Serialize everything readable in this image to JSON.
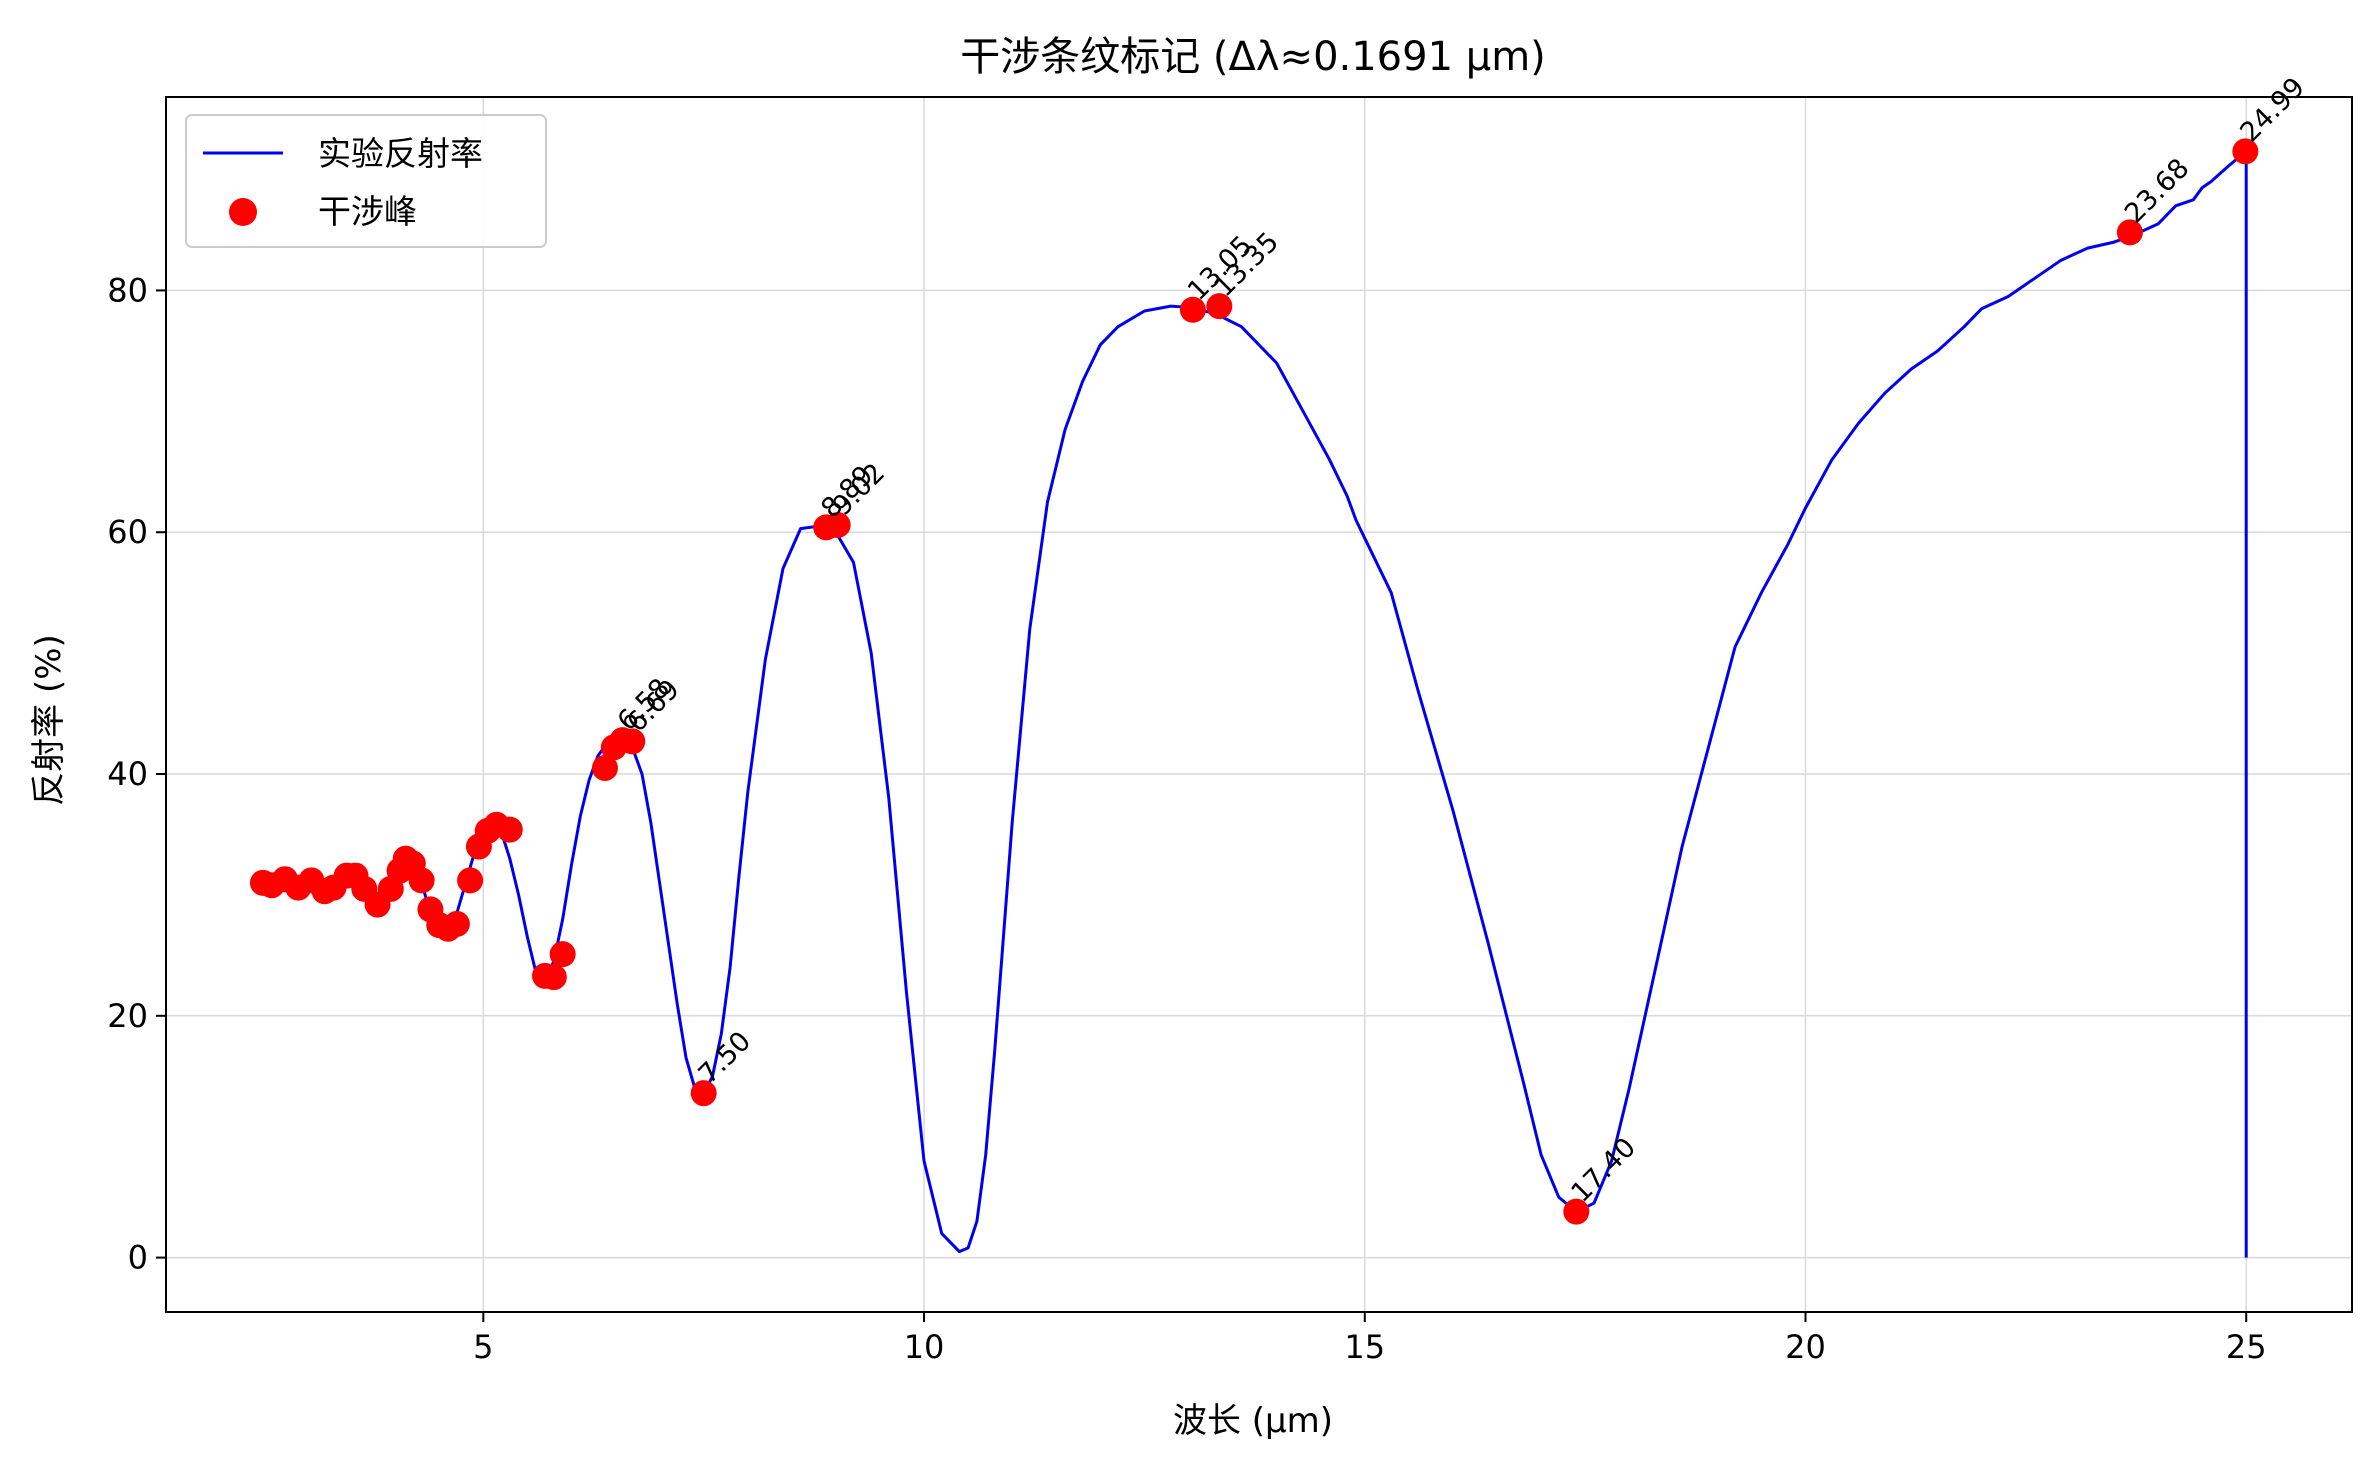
{
  "chart_data": {
    "type": "line",
    "title": "干涉条纹标记 (Δλ≈0.1691 μm)",
    "xlabel": "波长 (μm)",
    "ylabel": "反射率 (%)",
    "xlim": [
      1.4,
      26.2
    ],
    "ylim": [
      -4.5,
      96
    ],
    "xticks": [
      5,
      10,
      15,
      20,
      25
    ],
    "yticks": [
      0,
      20,
      40,
      60,
      80
    ],
    "grid": true,
    "legend": {
      "placement": "top-left",
      "entries": [
        {
          "label": "实验反射率",
          "kind": "line",
          "color": "#0000ee"
        },
        {
          "label": "干涉峰",
          "kind": "marker",
          "color": "#ff0000"
        }
      ]
    },
    "colors": {
      "line": "#0000ee",
      "peaks": "#ff0000",
      "grid": "#d9d9d9"
    },
    "series": [
      {
        "name": "实验反射率",
        "x": [
          2.5,
          2.6,
          2.7,
          2.8,
          2.9,
          3.0,
          3.1,
          3.2,
          3.3,
          3.4,
          3.5,
          3.6,
          3.7,
          3.8,
          3.9,
          4.0,
          4.1,
          4.2,
          4.3,
          4.4,
          4.5,
          4.6,
          4.7,
          4.8,
          4.9,
          5.0,
          5.1,
          5.2,
          5.3,
          5.4,
          5.5,
          5.6,
          5.7,
          5.8,
          5.9,
          6.0,
          6.1,
          6.2,
          6.3,
          6.4,
          6.5,
          6.6,
          6.7,
          6.8,
          6.9,
          7.0,
          7.1,
          7.2,
          7.3,
          7.4,
          7.5,
          7.6,
          7.7,
          7.8,
          7.9,
          8.0,
          8.2,
          8.4,
          8.6,
          8.8,
          9.0,
          9.2,
          9.4,
          9.6,
          9.8,
          10.0,
          10.2,
          10.4,
          10.5,
          10.6,
          10.7,
          10.8,
          11.0,
          11.2,
          11.4,
          11.6,
          11.8,
          12.0,
          12.2,
          12.5,
          12.8,
          13.0,
          13.3,
          13.6,
          14.0,
          14.3,
          14.6,
          14.8,
          14.9,
          15.0,
          15.3,
          15.6,
          16.0,
          16.4,
          16.8,
          17.0,
          17.2,
          17.4,
          17.6,
          17.8,
          18.0,
          18.3,
          18.6,
          19.0,
          19.2,
          19.5,
          19.8,
          20.0,
          20.3,
          20.6,
          20.9,
          21.2,
          21.5,
          21.8,
          22.0,
          22.3,
          22.6,
          22.9,
          23.2,
          23.5,
          23.7,
          24.0,
          24.2,
          24.4,
          24.5,
          24.6,
          24.8,
          24.95,
          25.0,
          25.0
        ],
        "y": [
          30.9,
          30.6,
          31.2,
          31.5,
          30.5,
          30.8,
          31.3,
          30.2,
          30.5,
          31.5,
          31.8,
          30.8,
          29.5,
          29.0,
          30.2,
          31.5,
          33.0,
          32.5,
          31.0,
          28.5,
          27.2,
          27.0,
          28.5,
          31.0,
          33.5,
          35.2,
          35.8,
          35.3,
          33.0,
          30.0,
          26.5,
          23.5,
          23.0,
          24.5,
          28.0,
          32.5,
          36.5,
          39.5,
          41.5,
          42.5,
          42.9,
          42.8,
          42.0,
          40.0,
          36.0,
          31.0,
          26.0,
          21.0,
          16.5,
          14.0,
          13.6,
          15.0,
          18.5,
          24.0,
          31.5,
          38.5,
          49.5,
          57.0,
          60.3,
          60.5,
          60.0,
          57.5,
          50.0,
          38.0,
          22.0,
          8.0,
          2.0,
          0.5,
          0.8,
          3.0,
          8.5,
          17.0,
          36.0,
          52.0,
          62.5,
          68.5,
          72.5,
          75.5,
          77.0,
          78.3,
          78.7,
          78.6,
          78.1,
          77.0,
          74.0,
          70.0,
          66.0,
          63.0,
          61.0,
          59.5,
          55.0,
          47.0,
          37.0,
          26.0,
          14.5,
          8.5,
          5.0,
          3.8,
          4.5,
          8.0,
          14.0,
          24.0,
          34.0,
          45.0,
          50.5,
          55.0,
          59.0,
          62.0,
          66.0,
          69.0,
          71.5,
          73.5,
          75.0,
          77.0,
          78.5,
          79.5,
          81.0,
          82.5,
          83.5,
          84.0,
          84.5,
          85.5,
          87.0,
          87.5,
          88.5,
          89.0,
          90.3,
          91.2,
          90.5,
          0.0
        ]
      },
      {
        "name": "干涉峰",
        "points": [
          {
            "x": 2.5,
            "y": 31.0
          },
          {
            "x": 2.6,
            "y": 30.8
          },
          {
            "x": 2.75,
            "y": 31.3
          },
          {
            "x": 2.9,
            "y": 30.6
          },
          {
            "x": 3.05,
            "y": 31.2
          },
          {
            "x": 3.2,
            "y": 30.3
          },
          {
            "x": 3.3,
            "y": 30.6
          },
          {
            "x": 3.45,
            "y": 31.6
          },
          {
            "x": 3.55,
            "y": 31.6
          },
          {
            "x": 3.65,
            "y": 30.5
          },
          {
            "x": 3.8,
            "y": 29.2
          },
          {
            "x": 3.95,
            "y": 30.5
          },
          {
            "x": 4.05,
            "y": 32.0
          },
          {
            "x": 4.12,
            "y": 33.0
          },
          {
            "x": 4.2,
            "y": 32.6
          },
          {
            "x": 4.3,
            "y": 31.2
          },
          {
            "x": 4.4,
            "y": 28.8
          },
          {
            "x": 4.5,
            "y": 27.5
          },
          {
            "x": 4.6,
            "y": 27.2
          },
          {
            "x": 4.7,
            "y": 27.6
          },
          {
            "x": 4.85,
            "y": 31.2
          },
          {
            "x": 4.95,
            "y": 34.0
          },
          {
            "x": 5.05,
            "y": 35.3
          },
          {
            "x": 5.15,
            "y": 35.8
          },
          {
            "x": 5.3,
            "y": 35.4
          },
          {
            "x": 5.7,
            "y": 23.3
          },
          {
            "x": 5.8,
            "y": 23.2
          },
          {
            "x": 5.9,
            "y": 25.1
          },
          {
            "x": 6.38,
            "y": 40.5
          },
          {
            "x": 6.48,
            "y": 42.2
          },
          {
            "x": 6.58,
            "y": 42.8
          },
          {
            "x": 6.69,
            "y": 42.7
          },
          {
            "x": 7.5,
            "y": 13.6
          },
          {
            "x": 8.89,
            "y": 60.4
          },
          {
            "x": 9.02,
            "y": 60.6
          },
          {
            "x": 13.05,
            "y": 78.4
          },
          {
            "x": 13.35,
            "y": 78.7
          },
          {
            "x": 17.4,
            "y": 3.8
          },
          {
            "x": 23.68,
            "y": 84.8
          },
          {
            "x": 24.99,
            "y": 91.5
          }
        ],
        "annotations": [
          {
            "x": 6.58,
            "y": 42.8,
            "text": "6.58"
          },
          {
            "x": 6.69,
            "y": 42.7,
            "text": "6.69"
          },
          {
            "x": 7.5,
            "y": 13.6,
            "text": "7.50"
          },
          {
            "x": 8.89,
            "y": 60.4,
            "text": "8.89"
          },
          {
            "x": 9.02,
            "y": 60.6,
            "text": "9.02"
          },
          {
            "x": 13.05,
            "y": 78.4,
            "text": "13.05"
          },
          {
            "x": 13.35,
            "y": 78.7,
            "text": "13.35"
          },
          {
            "x": 17.4,
            "y": 3.8,
            "text": "17.40"
          },
          {
            "x": 23.68,
            "y": 84.8,
            "text": "23.68"
          },
          {
            "x": 24.99,
            "y": 91.5,
            "text": "24.99"
          }
        ]
      }
    ]
  }
}
